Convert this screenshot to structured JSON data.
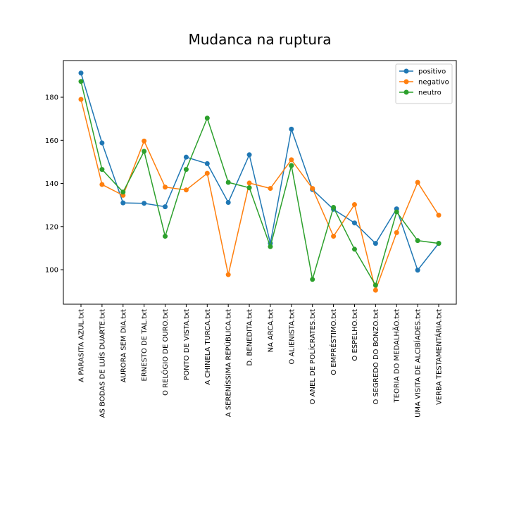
{
  "chart_data": {
    "type": "line",
    "title": "Mudanca na ruptura",
    "xlabel": "",
    "ylabel": "",
    "ylim": [
      84,
      197
    ],
    "yticks": [
      100,
      120,
      140,
      160,
      180
    ],
    "grid": false,
    "legend_position": "top-right",
    "categories": [
      "A PARASITA AZUL.txt",
      "AS BODAS DE LUÍS DUARTE.txt",
      "AURORA SEM DIA.txt",
      "ERNESTO DE TAL.txt",
      "O RELÓGIO DE OURO.txt",
      "PONTO DE VISTA.txt",
      "A CHINELA TURCA.txt",
      "A SERENÍSSIMA REPÚBLICA.txt",
      "D. BENEDITA.txt",
      "NA ARCA.txt",
      "O ALIENISTA.txt",
      "O ANEL DE POLÍCRATES.txt",
      "O EMPRÉSTIMO.txt",
      "O ESPELHO.txt",
      "O SEGREDO DO BONZO.txt",
      "TEORIA DO MEDALHÃO.txt",
      "UMA VISITA DE ALCIBÍADES.txt",
      "VERBA TESTAMENTÁRIA.txt"
    ],
    "series": [
      {
        "name": "positivo",
        "color": "#1f77b4",
        "values": [
          191.2,
          158.8,
          131.0,
          130.8,
          129.2,
          152.2,
          149.2,
          131.2,
          153.3,
          112.2,
          165.2,
          137.2,
          128.0,
          121.7,
          112.2,
          128.2,
          99.8,
          112.2
        ]
      },
      {
        "name": "negativo",
        "color": "#ff7f0e",
        "values": [
          179.0,
          139.5,
          134.5,
          159.7,
          138.3,
          137.0,
          144.7,
          97.7,
          140.2,
          137.7,
          151.0,
          137.7,
          115.5,
          130.2,
          90.5,
          117.2,
          140.5,
          125.3
        ]
      },
      {
        "name": "neutro",
        "color": "#2ca02c",
        "values": [
          187.3,
          146.5,
          136.0,
          154.9,
          115.5,
          146.5,
          170.3,
          140.5,
          138.0,
          110.7,
          148.3,
          95.5,
          128.9,
          109.5,
          92.8,
          126.8,
          113.5,
          112.2
        ]
      }
    ]
  }
}
